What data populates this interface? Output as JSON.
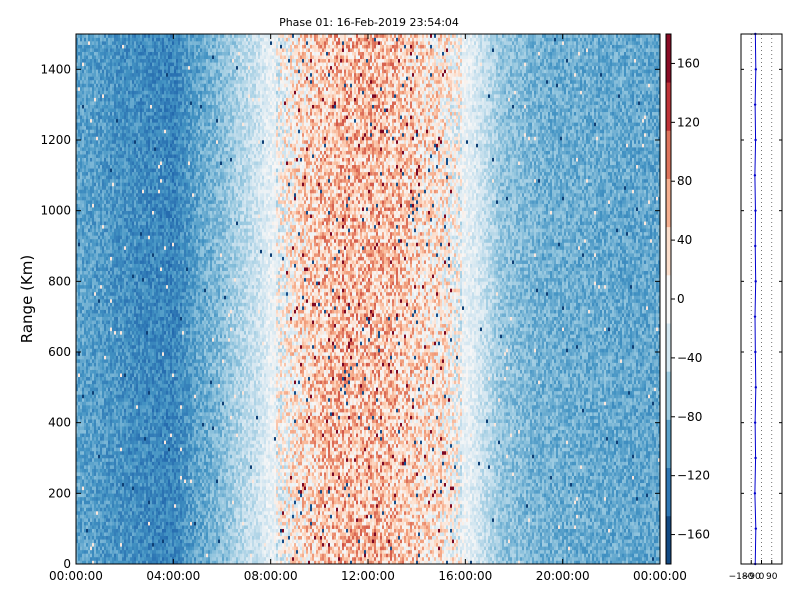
{
  "chart_data": [
    {
      "type": "heatmap",
      "title": "Phase 01: 16-Feb-2019 23:54:04",
      "xlabel": "",
      "ylabel": "Range (Km)",
      "x_tick_labels": [
        "00:00:00",
        "04:00:00",
        "08:00:00",
        "12:00:00",
        "16:00:00",
        "20:00:00",
        "00:00:00"
      ],
      "x_tick_hours": [
        0,
        4,
        8,
        12,
        16,
        20,
        24
      ],
      "xlim_hours": [
        0,
        24
      ],
      "y_ticks": [
        0,
        200,
        400,
        600,
        800,
        1000,
        1200,
        1400
      ],
      "ylim": [
        0,
        1500
      ],
      "grid": false,
      "colorbar": {
        "ticks": [
          -160,
          -120,
          -80,
          -40,
          0,
          40,
          80,
          120,
          160
        ],
        "range": [
          -180,
          180
        ],
        "colormap": "RdBu_r",
        "colors": [
          "#053061",
          "#2166ac",
          "#4393c3",
          "#92c5de",
          "#d1e5f0",
          "#f7f7f7",
          "#fddbc7",
          "#f4a582",
          "#d6604d",
          "#b2182b",
          "#67001f"
        ]
      },
      "phase_profile_by_hour": [
        {
          "hour": 0,
          "phase": -95
        },
        {
          "hour": 2,
          "phase": -110
        },
        {
          "hour": 4,
          "phase": -120
        },
        {
          "hour": 5,
          "phase": -95
        },
        {
          "hour": 6,
          "phase": -75
        },
        {
          "hour": 7.5,
          "phase": -35
        },
        {
          "hour": 9,
          "phase": 20
        },
        {
          "hour": 10,
          "phase": 45
        },
        {
          "hour": 11,
          "phase": 55
        },
        {
          "hour": 13,
          "phase": 50
        },
        {
          "hour": 15,
          "phase": 20
        },
        {
          "hour": 16.5,
          "phase": -30
        },
        {
          "hour": 17.5,
          "phase": -70
        },
        {
          "hour": 19,
          "phase": -85
        },
        {
          "hour": 21,
          "phase": -90
        },
        {
          "hour": 24,
          "phase": -95
        }
      ]
    },
    {
      "type": "line",
      "title": "",
      "xlabel": "",
      "ylabel": "",
      "x_tick_labels": [
        "−180",
        "−90",
        "0",
        "90"
      ],
      "xlim": [
        -180,
        180
      ],
      "ylim": [
        0,
        1500
      ],
      "grid": true,
      "series": [
        {
          "color": "#0000cc",
          "points": [
            {
              "x": -55,
              "y": 0
            },
            {
              "x": -50,
              "y": 100
            },
            {
              "x": -58,
              "y": 200
            },
            {
              "x": -52,
              "y": 300
            },
            {
              "x": -56,
              "y": 400
            },
            {
              "x": -50,
              "y": 500
            },
            {
              "x": -54,
              "y": 600
            },
            {
              "x": -57,
              "y": 700
            },
            {
              "x": -51,
              "y": 800
            },
            {
              "x": -55,
              "y": 900
            },
            {
              "x": -53,
              "y": 1000
            },
            {
              "x": -58,
              "y": 1100
            },
            {
              "x": -52,
              "y": 1200
            },
            {
              "x": -56,
              "y": 1300
            },
            {
              "x": -50,
              "y": 1400
            },
            {
              "x": -54,
              "y": 1500
            }
          ]
        }
      ]
    }
  ]
}
